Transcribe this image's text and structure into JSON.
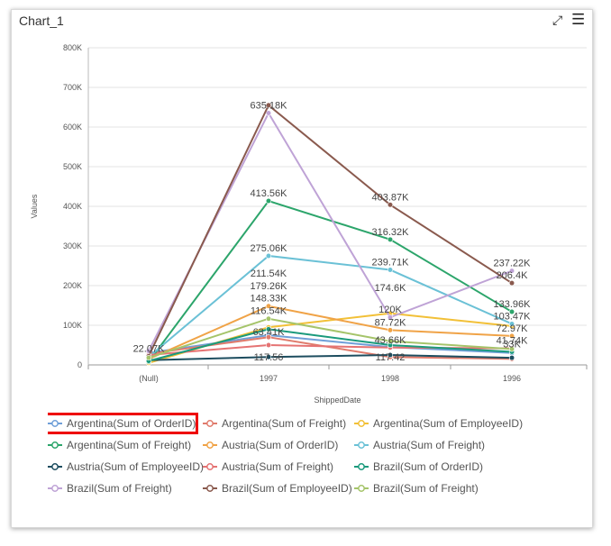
{
  "window": {
    "title": "Chart_1"
  },
  "icons": {
    "expand": "expand-icon",
    "menu": "hamburger-menu-icon"
  },
  "chart_data": {
    "type": "line",
    "categories": [
      "(Null)",
      "1997",
      "1998",
      "1996"
    ],
    "xlabel": "ShippedDate",
    "ylabel": "Values",
    "ylim": [
      0,
      800000
    ],
    "y_ticks": [
      "0",
      "100K",
      "200K",
      "300K",
      "400K",
      "500K",
      "600K",
      "700K",
      "800K"
    ],
    "grid": true,
    "legend_position": "bottom",
    "data_labels": [
      {
        "text": "22.07K",
        "category": "(Null)",
        "value": 22070
      },
      {
        "text": "635.18K",
        "category": "1997",
        "value": 635180
      },
      {
        "text": "413.56K",
        "category": "1997",
        "value": 413560
      },
      {
        "text": "275.06K",
        "category": "1997",
        "value": 275060
      },
      {
        "text": "211.54K",
        "category": "1997",
        "value": 211540
      },
      {
        "text": "179.26K",
        "category": "1997",
        "value": 179260
      },
      {
        "text": "148.33K",
        "category": "1997",
        "value": 148330
      },
      {
        "text": "116.54K",
        "category": "1997",
        "value": 116540
      },
      {
        "text": "63.41K",
        "category": "1997",
        "value": 63410
      },
      {
        "text": "117.56",
        "category": "1997",
        "value": 117.56
      },
      {
        "text": "403.87K",
        "category": "1998",
        "value": 403870
      },
      {
        "text": "316.32K",
        "category": "1998",
        "value": 316320
      },
      {
        "text": "239.71K",
        "category": "1998",
        "value": 239710
      },
      {
        "text": "174.6K",
        "category": "1998",
        "value": 174600
      },
      {
        "text": "120K",
        "category": "1998",
        "value": 120000
      },
      {
        "text": "87.72K",
        "category": "1998",
        "value": 87720
      },
      {
        "text": "43.66K",
        "category": "1998",
        "value": 43660
      },
      {
        "text": "117.42",
        "category": "1998",
        "value": 117.42
      },
      {
        "text": "237.22K",
        "category": "1996",
        "value": 237220
      },
      {
        "text": "206.4K",
        "category": "1996",
        "value": 206400
      },
      {
        "text": "133.96K",
        "category": "1996",
        "value": 133960
      },
      {
        "text": "103.47K",
        "category": "1996",
        "value": 103470
      },
      {
        "text": "72.97K",
        "category": "1996",
        "value": 72970
      },
      {
        "text": "41.74K",
        "category": "1996",
        "value": 41740
      },
      {
        "text": "33K",
        "category": "1996",
        "value": 33000
      }
    ],
    "series": [
      {
        "name": "Argentina(Sum of OrderID)",
        "color": "#6f9fd8",
        "values": [
          30000,
          75000,
          45000,
          30000
        ]
      },
      {
        "name": "Argentina(Sum of Freight)",
        "color": "#e07b6c",
        "values": [
          28000,
          70000,
          20000,
          15000
        ]
      },
      {
        "name": "Argentina(Sum of EmployeeID)",
        "color": "#f2c037",
        "values": [
          5000,
          95000,
          130000,
          98000
        ]
      },
      {
        "name": "Argentina(Sum of Freight)",
        "color": "#2ca56b",
        "values": [
          8000,
          413560,
          316320,
          133960
        ]
      },
      {
        "name": "Austria(Sum of OrderID)",
        "color": "#f0a347",
        "values": [
          15000,
          148330,
          87720,
          72970
        ]
      },
      {
        "name": "Austria(Sum of Freight)",
        "color": "#6bc1d6",
        "values": [
          20000,
          275060,
          239710,
          103470
        ]
      },
      {
        "name": "Austria(Sum of EmployeeID)",
        "color": "#1d4d5f",
        "values": [
          12000,
          20000,
          25000,
          18000
        ]
      },
      {
        "name": "Austria(Sum of Freight)",
        "color": "#e57373",
        "values": [
          25000,
          50000,
          43660,
          41740
        ]
      },
      {
        "name": "Brazil(Sum of OrderID)",
        "color": "#1a9a7c",
        "values": [
          10000,
          90000,
          50000,
          33000
        ]
      },
      {
        "name": "Brazil(Sum of Freight)",
        "color": "#bfa3d6",
        "values": [
          35000,
          635180,
          120000,
          237220
        ]
      },
      {
        "name": "Brazil(Sum of EmployeeID)",
        "color": "#8a5a4e",
        "values": [
          22070,
          655000,
          403870,
          206400
        ]
      },
      {
        "name": "Brazil(Sum of Freight)",
        "color": "#a5c46a",
        "values": [
          18000,
          116540,
          60000,
          40000
        ]
      }
    ]
  },
  "legend": {
    "selected_index": 0,
    "items": [
      "Argentina(Sum of OrderID)",
      "Argentina(Sum of Freight)",
      "Argentina(Sum of EmployeeID)",
      "Argentina(Sum of Freight)",
      "Austria(Sum of OrderID)",
      "Austria(Sum of Freight)",
      "Austria(Sum of EmployeeID)",
      "Austria(Sum of Freight)",
      "Brazil(Sum of OrderID)",
      "Brazil(Sum of Freight)",
      "Brazil(Sum of EmployeeID)",
      "Brazil(Sum of Freight)"
    ]
  }
}
